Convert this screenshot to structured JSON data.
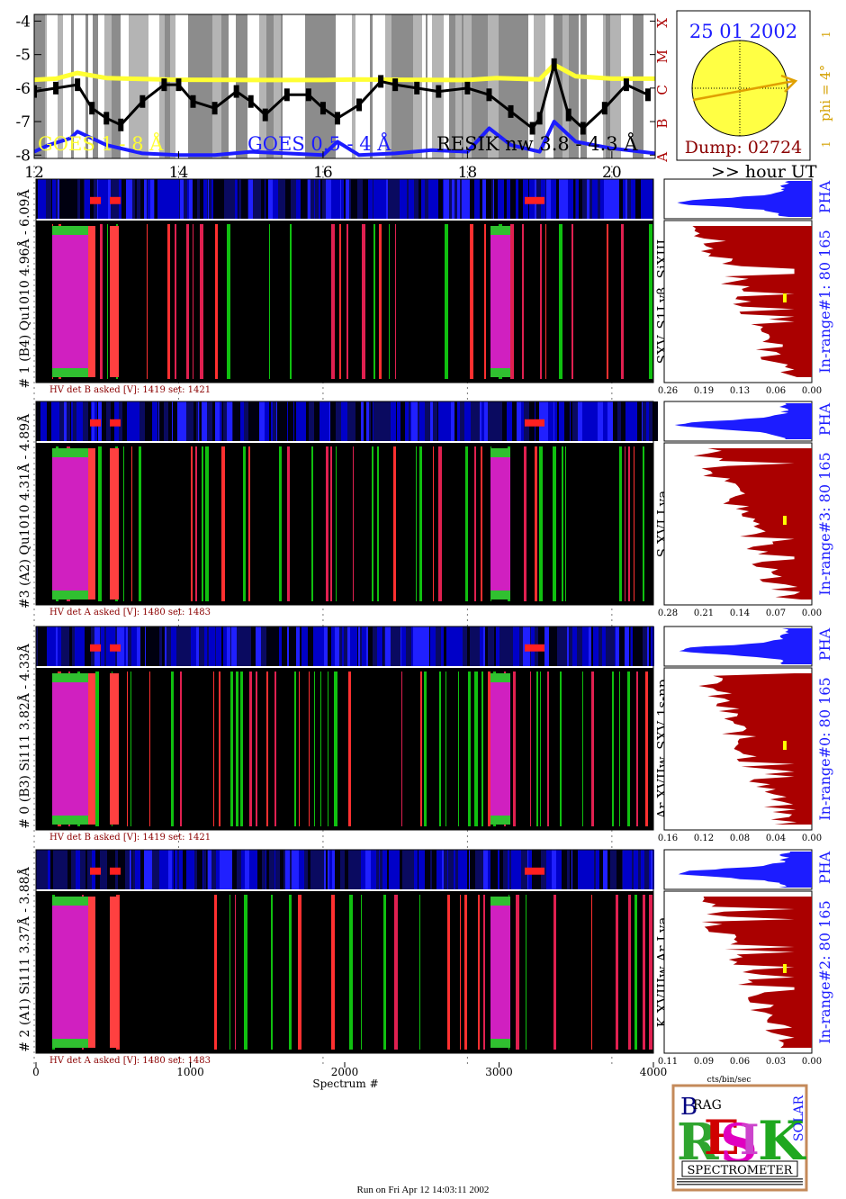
{
  "header": {
    "date": "25 01 2002",
    "dump": "Dump: 02724",
    "phi_label": "phi =  4°",
    "phi_side_top": "1",
    "phi_side_bottom": "1",
    "goes_class_letters": [
      "X",
      "M",
      "C",
      "B",
      "A"
    ]
  },
  "lightcurve": {
    "yticks": [
      "-4",
      "-5",
      "-6",
      "-7",
      "-8"
    ],
    "xticks": [
      "12",
      "14",
      "16",
      "18",
      "20"
    ],
    "x_unit": ">> hour UT",
    "legend": [
      "GOES 1 - 8 Å",
      "GOES 0.5 - 4 Å",
      "RESIK nw 3.8 - 4.3 Å"
    ],
    "colors": {
      "goes_long": "#ffff33",
      "goes_short": "#1c1cff",
      "resik": "#000000"
    }
  },
  "chart_data": {
    "type": "line",
    "xlabel": "hour UT",
    "xlim": [
      12,
      20.6
    ],
    "ylim": [
      -8.1,
      -3.8
    ],
    "series": [
      {
        "name": "GOES 1 - 8 Å",
        "x": [
          12.0,
          12.3,
          12.6,
          13.0,
          13.5,
          14.0,
          15.0,
          16.0,
          16.5,
          17.0,
          18.0,
          18.4,
          19.0,
          19.2,
          19.5,
          20.0,
          20.6
        ],
        "y": [
          -5.75,
          -5.72,
          -5.55,
          -5.7,
          -5.73,
          -5.75,
          -5.76,
          -5.76,
          -5.74,
          -5.75,
          -5.76,
          -5.7,
          -5.74,
          -5.3,
          -5.65,
          -5.72,
          -5.72
        ]
      },
      {
        "name": "GOES 0.5 - 4 Å",
        "x": [
          12.0,
          12.2,
          12.5,
          12.6,
          13.0,
          13.5,
          14.0,
          14.5,
          15.0,
          15.5,
          16.0,
          16.2,
          16.5,
          17.0,
          17.5,
          18.0,
          18.3,
          18.6,
          19.0,
          19.2,
          19.5,
          20.0,
          20.6
        ],
        "y": [
          -7.9,
          -7.7,
          -7.5,
          -7.3,
          -7.7,
          -7.95,
          -8.0,
          -8.0,
          -7.9,
          -7.95,
          -8.0,
          -7.6,
          -8.0,
          -7.95,
          -7.85,
          -7.9,
          -7.2,
          -7.7,
          -7.9,
          -7.0,
          -7.6,
          -7.8,
          -7.95
        ]
      },
      {
        "name": "RESIK nw 3.8 - 4.3 Å",
        "x": [
          12.0,
          12.3,
          12.6,
          12.8,
          13.0,
          13.2,
          13.5,
          13.8,
          14.0,
          14.2,
          14.5,
          14.8,
          15.0,
          15.2,
          15.5,
          15.8,
          16.0,
          16.2,
          16.5,
          16.8,
          17.0,
          17.3,
          17.6,
          18.0,
          18.3,
          18.6,
          18.9,
          19.0,
          19.2,
          19.4,
          19.6,
          19.9,
          20.2,
          20.5
        ],
        "y": [
          -6.1,
          -6.0,
          -5.9,
          -6.6,
          -6.9,
          -7.1,
          -6.4,
          -5.9,
          -5.9,
          -6.4,
          -6.6,
          -6.1,
          -6.4,
          -6.8,
          -6.2,
          -6.2,
          -6.6,
          -6.9,
          -6.5,
          -5.8,
          -5.9,
          -6.0,
          -6.1,
          -6.0,
          -6.2,
          -6.7,
          -7.2,
          -6.9,
          -5.3,
          -6.8,
          -7.2,
          -6.6,
          -5.9,
          -6.2
        ]
      }
    ]
  },
  "spectrogram": {
    "xticks": [
      "0",
      "1000",
      "2000",
      "3000",
      "4000"
    ],
    "xlabel": "Spectrum #",
    "channels": [
      {
        "left_label": "# 1  (B4)  Qu1010  4.96Å - 6.09Å",
        "lines": "SXV, S1Lyβ, SiXIII",
        "hv": "HV det B asked [V]:  1419  set:  1421",
        "hist_ticks": [
          "0.26",
          "0.19",
          "0.13",
          "0.06",
          "0.00"
        ],
        "pha": "PHA",
        "range": "In-range#1:  80 165"
      },
      {
        "left_label": "#3  (A2)  Qu1010   4.31Å - 4.89Å",
        "lines": "S XVI Lya",
        "hv": "HV det A asked [V]:  1480  set:  1483",
        "hist_ticks": [
          "0.28",
          "0.21",
          "0.14",
          "0.07",
          "0.00"
        ],
        "pha": "PHA",
        "range": "In-range#3:  80 165"
      },
      {
        "left_label": "# 0  (B3)  Si111   3.82Å - 4.33Å",
        "lines": "Ar XVIIw,  SXV  1s-np",
        "hv": "HV det B asked [V]:  1419  set:  1421",
        "hist_ticks": [
          "0.16",
          "0.12",
          "0.08",
          "0.04",
          "0.00"
        ],
        "pha": "PHA",
        "range": "In-range#0:  80 165"
      },
      {
        "left_label": "# 2  (A1)  Si111   3.37Å - 3.88Å",
        "lines": "K XVIIIw   Ar Lya",
        "hv": "HV det A asked [V]:  1480  set:  1483",
        "hist_ticks": [
          "0.11",
          "0.09",
          "0.06",
          "0.03",
          "0.00"
        ],
        "pha": "PHA",
        "range": "In-range#2:  80 165"
      }
    ],
    "hist_unit": "cts/bin/sec"
  },
  "logo": {
    "small": [
      "B",
      "RAG",
      "G"
    ],
    "big": [
      "R",
      "E",
      "S",
      "I",
      "K"
    ],
    "side": "SOLAR",
    "caption": "SPECTROMETER"
  },
  "footer": "Run on Fri Apr 12 14:03:11 2002"
}
